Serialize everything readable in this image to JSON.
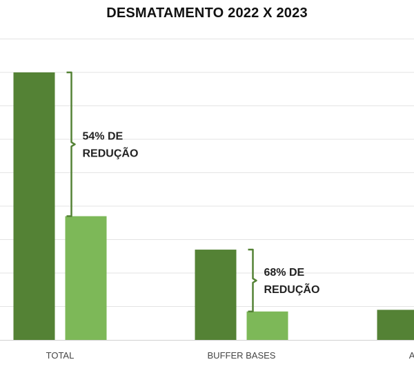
{
  "chart_data": {
    "type": "bar",
    "title": "DESMATAMENTO 2022 X 2023",
    "xlabel": "",
    "ylabel": "",
    "ylim": [
      0,
      9
    ],
    "grid": true,
    "categories": [
      "TOTAL",
      "BUFFER BASES",
      "APUI E"
    ],
    "series": [
      {
        "color": "#548235",
        "values": [
          8.0,
          2.7,
          0.9
        ]
      },
      {
        "color": "#7DB858",
        "values": [
          3.7,
          0.85,
          null
        ]
      }
    ],
    "annotations": [
      {
        "category": "TOTAL",
        "lines": [
          "54% DE",
          "REDUÇÃO"
        ]
      },
      {
        "category": "BUFFER BASES",
        "lines": [
          "68% DE",
          "REDUÇÃO"
        ]
      }
    ]
  }
}
